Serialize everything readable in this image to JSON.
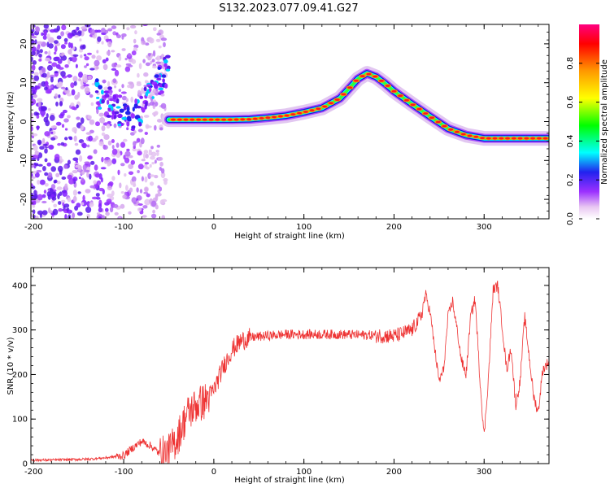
{
  "figure": {
    "title": "S132.2023.077.09.41.G27"
  },
  "chart_data": [
    {
      "type": "heatmap",
      "xlabel": "Height of straight line (km)",
      "ylabel": "Frequency (Hz)",
      "xlim": [
        -203,
        372
      ],
      "ylim": [
        -25,
        25
      ],
      "xticks": [
        -200,
        -100,
        0,
        100,
        200,
        300
      ],
      "xtick_labels": [
        "-200",
        "-100",
        "0",
        "100",
        "200",
        "300"
      ],
      "yticks": [
        -20,
        -10,
        0,
        10,
        20
      ],
      "ytick_labels": [
        "-20",
        "-10",
        "0",
        "10",
        "20"
      ],
      "tone_track": {
        "x": [
          -50,
          -20,
          0,
          20,
          40,
          60,
          80,
          100,
          120,
          140,
          150,
          160,
          170,
          180,
          190,
          200,
          220,
          240,
          260,
          280,
          300,
          320,
          340,
          372
        ],
        "y": [
          0.5,
          0.5,
          0.5,
          0.5,
          0.6,
          1.0,
          1.5,
          2.4,
          3.5,
          6.0,
          8.5,
          11.0,
          12.4,
          11.5,
          9.8,
          7.8,
          4.5,
          1.3,
          -1.8,
          -3.5,
          -4.3,
          -4.3,
          -4.3,
          -4.3
        ]
      },
      "colorbar": {
        "label": "Normalized spectral amplitude",
        "range": [
          0,
          1
        ],
        "ticks": [
          0.0,
          0.2,
          0.4,
          0.6,
          0.8
        ],
        "tick_labels": [
          "0.0",
          "0.2",
          "0.4",
          "0.6",
          "0.8"
        ],
        "colors": [
          "#ffffff",
          "#e9c8f2",
          "#9b30ff",
          "#2222ee",
          "#00ffff",
          "#00ff00",
          "#ffff00",
          "#ff9900",
          "#ff0000",
          "#ff0080"
        ]
      }
    },
    {
      "type": "line",
      "xlabel": "Height of straight line (km)",
      "ylabel": "SNR (10 * v/v)",
      "xlim": [
        -203,
        372
      ],
      "ylim": [
        0,
        440
      ],
      "xticks": [
        -200,
        -100,
        0,
        100,
        200,
        300
      ],
      "xtick_labels": [
        "-200",
        "-100",
        "0",
        "100",
        "200",
        "300"
      ],
      "yticks": [
        0,
        100,
        200,
        300,
        400
      ],
      "ytick_labels": [
        "0",
        "100",
        "200",
        "300",
        "400"
      ],
      "color": "#ee3333",
      "series": [
        {
          "x": [
            -203,
            -180,
            -160,
            -140,
            -120,
            -100,
            -90,
            -80,
            -70,
            -60,
            -50,
            -40,
            -30,
            -20,
            -10,
            0,
            10,
            20,
            30,
            40,
            60,
            80,
            100,
            120,
            140,
            160,
            180,
            200,
            210,
            220,
            230,
            235,
            240,
            245,
            250,
            255,
            260,
            265,
            270,
            275,
            280,
            285,
            290,
            295,
            300,
            305,
            310,
            315,
            320,
            325,
            330,
            335,
            340,
            345,
            350,
            355,
            360,
            365,
            372
          ],
          "y": [
            8,
            8,
            9,
            10,
            13,
            18,
            35,
            50,
            40,
            22,
            25,
            60,
            110,
            130,
            140,
            165,
            215,
            255,
            275,
            283,
            287,
            290,
            290,
            290,
            290,
            289,
            288,
            286,
            292,
            300,
            330,
            380,
            340,
            260,
            185,
            210,
            330,
            365,
            300,
            230,
            200,
            330,
            370,
            200,
            60,
            200,
            390,
            400,
            310,
            210,
            260,
            130,
            185,
            330,
            240,
            150,
            115,
            210,
            230
          ]
        }
      ]
    }
  ]
}
